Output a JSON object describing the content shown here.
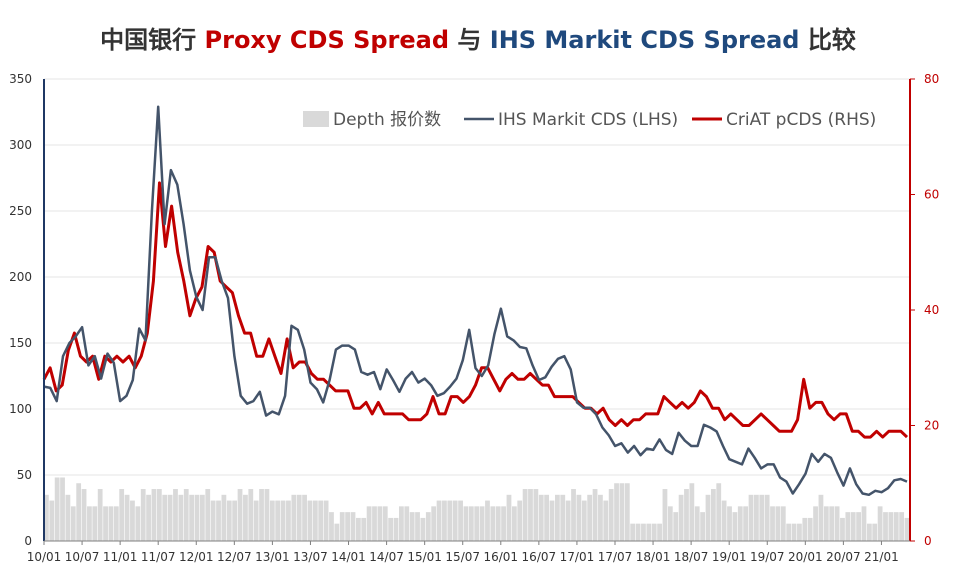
{
  "chart_data": {
    "type": "line",
    "title": {
      "prefix": "中国银行 ",
      "proxy": "Proxy CDS Spread",
      "mid": " 与 ",
      "ihs": "IHS Markit CDS Spread",
      "suffix": " 比较"
    },
    "colors": {
      "proxy_title": "#c00000",
      "ihs_title": "#1f497d",
      "ihs_line": "#44546a",
      "pcds_line": "#c00000",
      "depth_bar": "#d9d9d9",
      "left_axis": "#1f3864",
      "right_axis": "#c00000",
      "grid": "#e6e6e6"
    },
    "x_labels": [
      "10/01",
      "10/07",
      "11/01",
      "11/07",
      "12/01",
      "12/07",
      "13/01",
      "13/07",
      "14/01",
      "14/07",
      "15/01",
      "15/07",
      "16/01",
      "16/07",
      "17/01",
      "17/07",
      "18/01",
      "18/07",
      "19/01",
      "19/07",
      "20/01",
      "20/07",
      "21/01"
    ],
    "y_left": {
      "min": 0,
      "max": 350,
      "ticks": [
        "0",
        "50",
        "100",
        "150",
        "200",
        "250",
        "300",
        "350"
      ]
    },
    "y_right": {
      "min": 0,
      "max": 80,
      "ticks": [
        "0",
        "20",
        "40",
        "60",
        "80"
      ]
    },
    "legend": {
      "position": "top-right",
      "depth": "Depth 报价数",
      "ihs": "IHS Markit CDS (LHS)",
      "pcds": "CriAT pCDS (RHS)"
    },
    "series": [
      {
        "name": "IHS Markit CDS (LHS)",
        "axis": "left",
        "values": [
          117,
          116,
          106,
          140,
          150,
          155,
          162,
          133,
          140,
          123,
          142,
          135,
          106,
          110,
          122,
          161,
          152,
          250,
          329,
          240,
          281,
          270,
          240,
          205,
          185,
          175,
          215,
          215,
          197,
          184,
          140,
          110,
          104,
          106,
          113,
          95,
          98,
          96,
          110,
          163,
          160,
          145,
          120,
          115,
          105,
          122,
          145,
          148,
          148,
          145,
          128,
          126,
          128,
          115,
          130,
          122,
          113,
          123,
          128,
          120,
          123,
          118,
          110,
          112,
          117,
          123,
          137,
          160,
          131,
          125,
          133,
          157,
          176,
          155,
          152,
          147,
          146,
          133,
          122,
          124,
          132,
          138,
          140,
          130,
          105,
          101,
          101,
          96,
          86,
          80,
          72,
          74,
          67,
          72,
          65,
          70,
          69,
          77,
          69,
          66,
          82,
          76,
          72,
          72,
          88,
          86,
          83,
          72,
          62,
          60,
          58,
          70,
          63,
          55,
          58,
          58,
          48,
          45,
          36,
          43,
          51,
          66,
          60,
          66,
          63,
          52,
          42,
          55,
          43,
          36,
          35,
          38,
          37,
          40,
          46,
          47,
          45
        ]
      },
      {
        "name": "CriAT pCDS (RHS)",
        "axis": "right",
        "values": [
          28,
          30,
          26,
          27,
          33,
          36,
          32,
          31,
          32,
          28,
          32,
          31,
          32,
          31,
          32,
          30,
          32,
          36,
          45,
          62,
          51,
          58,
          50,
          45,
          39,
          42,
          44,
          51,
          50,
          45,
          44,
          43,
          39,
          36,
          36,
          32,
          32,
          35,
          32,
          29,
          35,
          30,
          31,
          31,
          29,
          28,
          28,
          27,
          26,
          26,
          26,
          23,
          23,
          24,
          22,
          24,
          22,
          22,
          22,
          22,
          21,
          21,
          21,
          22,
          25,
          22,
          22,
          25,
          25,
          24,
          25,
          27,
          30,
          30,
          28,
          26,
          28,
          29,
          28,
          28,
          29,
          28,
          27,
          27,
          25,
          25,
          25,
          25,
          24,
          23,
          23,
          22,
          23,
          21,
          20,
          21,
          20,
          21,
          21,
          22,
          22,
          22,
          25,
          24,
          23,
          24,
          23,
          24,
          26,
          25,
          23,
          23,
          21,
          22,
          21,
          20,
          20,
          21,
          22,
          21,
          20,
          19,
          19,
          19,
          21,
          28,
          23,
          24,
          24,
          22,
          21,
          22,
          22,
          19,
          19,
          18,
          18,
          19,
          18,
          19,
          19,
          19,
          18
        ]
      },
      {
        "name": "Depth 报价数",
        "axis": "right",
        "values": [
          8,
          7,
          11,
          11,
          8,
          6,
          10,
          9,
          6,
          6,
          9,
          6,
          6,
          6,
          9,
          8,
          7,
          6,
          9,
          8,
          9,
          9,
          8,
          8,
          9,
          8,
          9,
          8,
          8,
          8,
          9,
          7,
          7,
          8,
          7,
          7,
          9,
          8,
          9,
          7,
          9,
          9,
          7,
          7,
          7,
          7,
          8,
          8,
          8,
          7,
          7,
          7,
          7,
          5,
          3,
          5,
          5,
          5,
          4,
          4,
          6,
          6,
          6,
          6,
          4,
          4,
          6,
          6,
          5,
          5,
          4,
          5,
          6,
          7,
          7,
          7,
          7,
          7,
          6,
          6,
          6,
          6,
          7,
          6,
          6,
          6,
          8,
          6,
          7,
          9,
          9,
          9,
          8,
          8,
          7,
          8,
          8,
          7,
          9,
          8,
          7,
          8,
          9,
          8,
          7,
          9,
          10,
          10,
          10,
          3,
          3,
          3,
          3,
          3,
          3,
          9,
          6,
          5,
          8,
          9,
          10,
          6,
          5,
          8,
          9,
          10,
          7,
          6,
          5,
          6,
          6,
          8,
          8,
          8,
          8,
          6,
          6,
          6,
          3,
          3,
          3,
          4,
          4,
          6,
          8,
          6,
          6,
          6,
          4,
          5,
          5,
          5,
          6,
          3,
          3,
          6,
          5,
          5,
          5,
          5,
          4
        ]
      }
    ]
  }
}
